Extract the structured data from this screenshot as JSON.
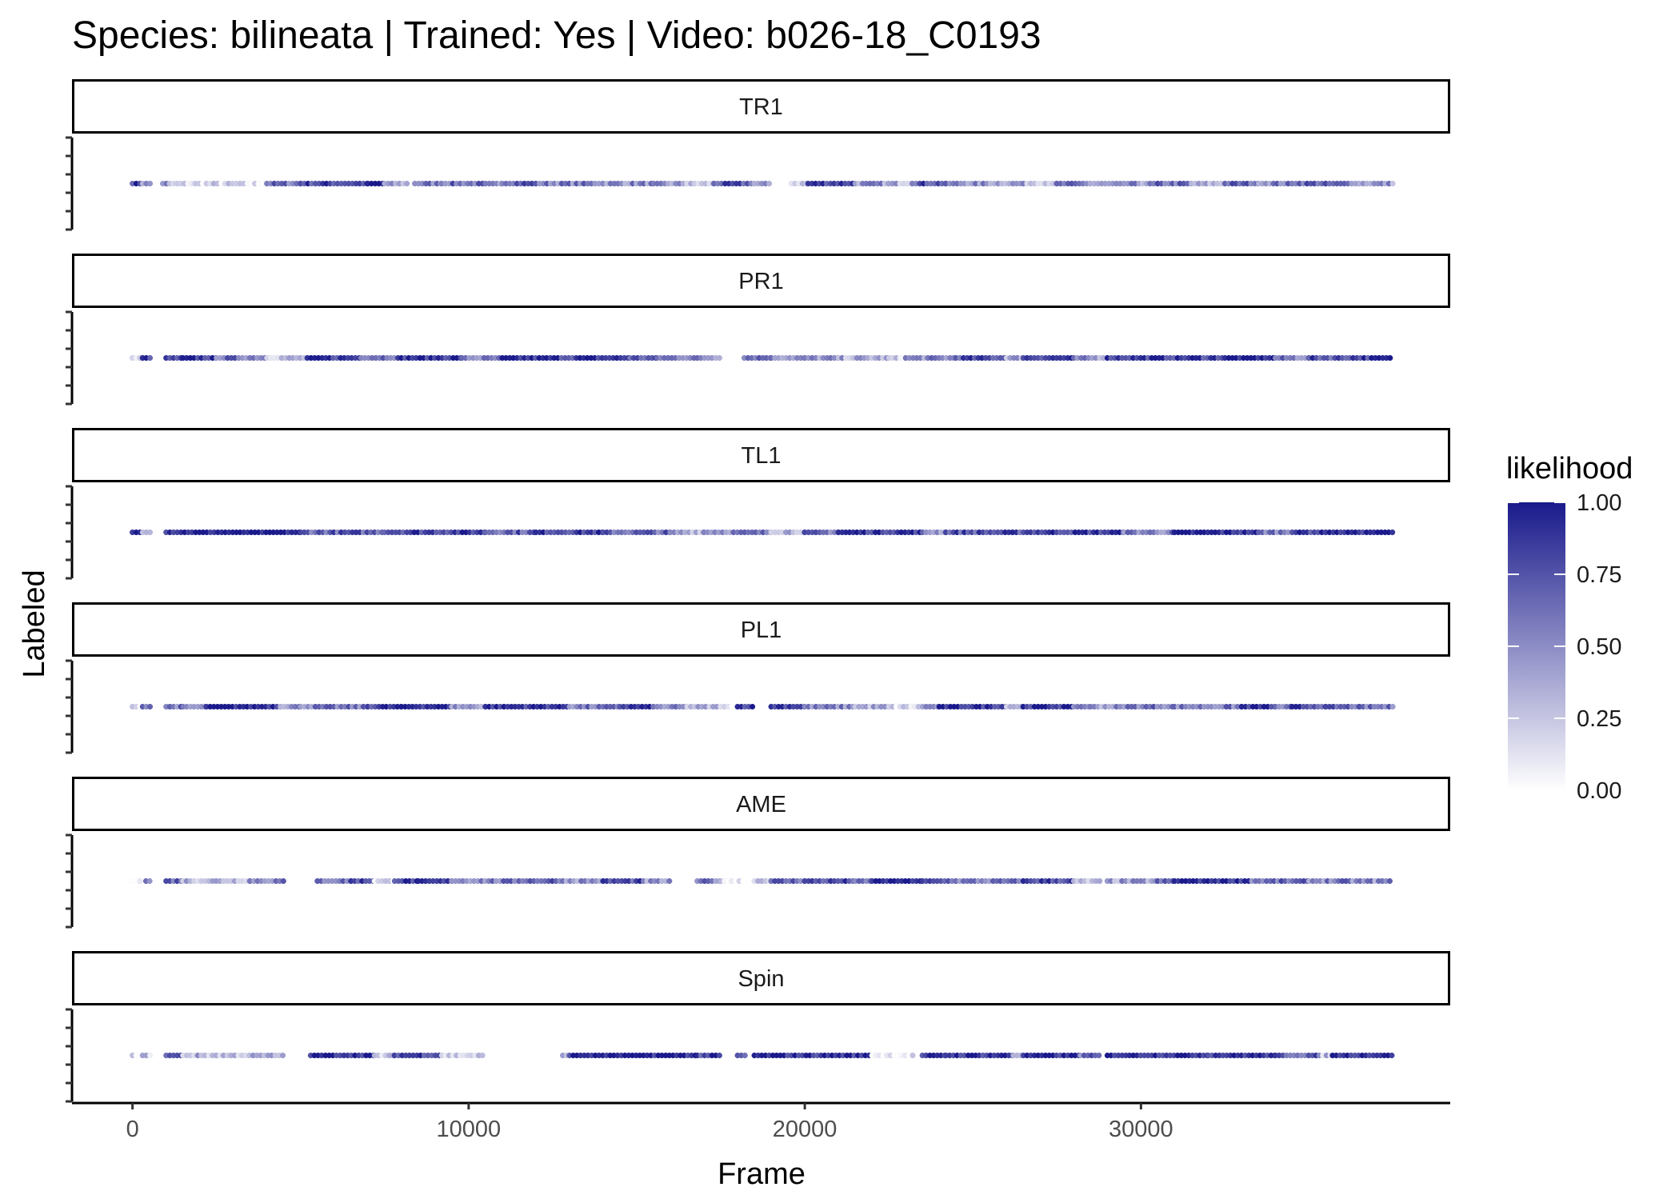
{
  "chart_data": {
    "type": "scatter",
    "title": "Species: bilineata | Trained: Yes | Video: b026-18_C0193",
    "xlabel": "Frame",
    "ylabel": "Labeled",
    "xlim": [
      -1800,
      39200
    ],
    "x_ticks": [
      "0",
      "10000",
      "20000",
      "30000"
    ],
    "x_tick_values": [
      0,
      10000,
      20000,
      30000
    ],
    "frame_range": [
      0,
      37500
    ],
    "grid": false,
    "legend": {
      "title": "likelihood",
      "placement": "right",
      "ticks": [
        "0.00",
        "0.25",
        "0.50",
        "0.75",
        "1.00"
      ],
      "tick_values": [
        0,
        0.25,
        0.5,
        0.75,
        1
      ],
      "color_low": "#ffffff",
      "color_high": "#1a1a8c"
    },
    "colors": {
      "low": "#ffffff",
      "high": "#1a1a8c"
    },
    "panels": [
      {
        "name": "TR1",
        "segments": [
          [
            0,
            300,
            0.85
          ],
          [
            300,
            600,
            0.45
          ],
          [
            900,
            1100,
            0.5
          ],
          [
            1100,
            3200,
            0.15
          ],
          [
            3200,
            4000,
            0.08
          ],
          [
            4000,
            5000,
            0.6
          ],
          [
            5000,
            7000,
            0.8
          ],
          [
            7000,
            7500,
            0.95
          ],
          [
            7500,
            8200,
            0.35
          ],
          [
            8400,
            9200,
            0.55
          ],
          [
            9200,
            10500,
            0.6
          ],
          [
            10500,
            11000,
            0.4
          ],
          [
            11000,
            12000,
            0.75
          ],
          [
            12000,
            14000,
            0.55
          ],
          [
            14000,
            15500,
            0.5
          ],
          [
            15500,
            16500,
            0.4
          ],
          [
            16500,
            17300,
            0.2
          ],
          [
            17300,
            18500,
            0.7
          ],
          [
            18500,
            19000,
            0.35
          ],
          [
            19600,
            20100,
            0.25
          ],
          [
            20100,
            21500,
            0.85
          ],
          [
            21500,
            22500,
            0.45
          ],
          [
            22500,
            23200,
            0.35
          ],
          [
            23200,
            24200,
            0.75
          ],
          [
            24200,
            25200,
            0.5
          ],
          [
            25200,
            26500,
            0.45
          ],
          [
            26500,
            27500,
            0.35
          ],
          [
            27500,
            28500,
            0.55
          ],
          [
            28500,
            29500,
            0.35
          ],
          [
            29500,
            30500,
            0.45
          ],
          [
            30500,
            31500,
            0.6
          ],
          [
            31500,
            32500,
            0.3
          ],
          [
            32500,
            33500,
            0.65
          ],
          [
            33500,
            34500,
            0.55
          ],
          [
            34500,
            35500,
            0.7
          ],
          [
            35500,
            36500,
            0.6
          ],
          [
            36500,
            37500,
            0.45
          ]
        ]
      },
      {
        "name": "PR1",
        "segments": [
          [
            0,
            300,
            0.1
          ],
          [
            300,
            600,
            0.85
          ],
          [
            1000,
            1500,
            0.7
          ],
          [
            1500,
            2500,
            0.85
          ],
          [
            2500,
            4000,
            0.6
          ],
          [
            4000,
            5200,
            0.3
          ],
          [
            5200,
            6800,
            0.85
          ],
          [
            6800,
            8000,
            0.7
          ],
          [
            8000,
            9800,
            0.9
          ],
          [
            9800,
            11000,
            0.5
          ],
          [
            11000,
            14800,
            0.85
          ],
          [
            14800,
            15600,
            0.7
          ],
          [
            15600,
            16800,
            0.6
          ],
          [
            16800,
            17500,
            0.5
          ],
          [
            18200,
            19000,
            0.7
          ],
          [
            19000,
            20000,
            0.5
          ],
          [
            20000,
            21000,
            0.45
          ],
          [
            21000,
            22500,
            0.35
          ],
          [
            22500,
            23000,
            0.15
          ],
          [
            23000,
            24500,
            0.5
          ],
          [
            24500,
            26000,
            0.75
          ],
          [
            26000,
            26500,
            0.4
          ],
          [
            26500,
            28000,
            0.85
          ],
          [
            28000,
            29000,
            0.45
          ],
          [
            29000,
            32500,
            0.85
          ],
          [
            32500,
            34000,
            0.95
          ],
          [
            34000,
            35000,
            0.55
          ],
          [
            35000,
            36200,
            0.75
          ],
          [
            36200,
            37500,
            0.85
          ]
        ]
      },
      {
        "name": "TL1",
        "segments": [
          [
            0,
            300,
            0.95
          ],
          [
            300,
            600,
            0.5
          ],
          [
            1000,
            5000,
            0.95
          ],
          [
            5000,
            7500,
            0.7
          ],
          [
            7500,
            10500,
            0.85
          ],
          [
            10500,
            12000,
            0.7
          ],
          [
            12000,
            14000,
            0.85
          ],
          [
            14000,
            16000,
            0.65
          ],
          [
            16000,
            17000,
            0.4
          ],
          [
            17000,
            19000,
            0.55
          ],
          [
            19000,
            20000,
            0.4
          ],
          [
            20000,
            21000,
            0.6
          ],
          [
            21000,
            23500,
            0.9
          ],
          [
            23500,
            24200,
            0.5
          ],
          [
            24200,
            26500,
            0.75
          ],
          [
            26500,
            29500,
            0.85
          ],
          [
            29500,
            31000,
            0.55
          ],
          [
            31000,
            33500,
            0.9
          ],
          [
            33500,
            34500,
            0.6
          ],
          [
            34500,
            35500,
            0.85
          ],
          [
            35500,
            37500,
            0.95
          ]
        ]
      },
      {
        "name": "PL1",
        "segments": [
          [
            0,
            300,
            0.1
          ],
          [
            300,
            600,
            0.7
          ],
          [
            1000,
            1500,
            0.6
          ],
          [
            1500,
            2200,
            0.4
          ],
          [
            2200,
            4400,
            0.95
          ],
          [
            4400,
            5000,
            0.5
          ],
          [
            5000,
            7000,
            0.55
          ],
          [
            7000,
            8000,
            0.85
          ],
          [
            8000,
            9500,
            0.95
          ],
          [
            9500,
            10500,
            0.45
          ],
          [
            10500,
            13000,
            0.9
          ],
          [
            13000,
            14500,
            0.55
          ],
          [
            14500,
            15500,
            0.85
          ],
          [
            15500,
            16500,
            0.45
          ],
          [
            16500,
            17500,
            0.3
          ],
          [
            17500,
            18000,
            0.05
          ],
          [
            18000,
            18500,
            0.9
          ],
          [
            19000,
            20000,
            0.9
          ],
          [
            20000,
            21500,
            0.5
          ],
          [
            21500,
            22500,
            0.35
          ],
          [
            22500,
            23500,
            0.15
          ],
          [
            23500,
            24000,
            0.5
          ],
          [
            24000,
            26000,
            0.9
          ],
          [
            26000,
            26500,
            0.4
          ],
          [
            26500,
            28000,
            0.9
          ],
          [
            28000,
            28500,
            0.6
          ],
          [
            28500,
            29500,
            0.45
          ],
          [
            29500,
            31000,
            0.6
          ],
          [
            31000,
            33000,
            0.55
          ],
          [
            33000,
            34000,
            0.9
          ],
          [
            34000,
            34500,
            0.5
          ],
          [
            34500,
            35500,
            0.8
          ],
          [
            35500,
            36500,
            0.65
          ],
          [
            36500,
            37500,
            0.55
          ]
        ]
      },
      {
        "name": "AME",
        "segments": [
          [
            0,
            300,
            0.15
          ],
          [
            400,
            600,
            0.55
          ],
          [
            1000,
            1500,
            0.7
          ],
          [
            1500,
            3500,
            0.35
          ],
          [
            3500,
            4500,
            0.55
          ],
          [
            5500,
            6500,
            0.6
          ],
          [
            6500,
            7200,
            0.8
          ],
          [
            7200,
            7800,
            0.15
          ],
          [
            7800,
            8500,
            0.85
          ],
          [
            8500,
            9500,
            0.75
          ],
          [
            9500,
            11500,
            0.55
          ],
          [
            11500,
            12800,
            0.7
          ],
          [
            12800,
            14000,
            0.5
          ],
          [
            14000,
            15200,
            0.75
          ],
          [
            15200,
            16000,
            0.4
          ],
          [
            16800,
            17500,
            0.55
          ],
          [
            17500,
            18200,
            0.1
          ],
          [
            18500,
            19000,
            0.35
          ],
          [
            19000,
            20000,
            0.65
          ],
          [
            20000,
            21500,
            0.75
          ],
          [
            21500,
            22000,
            0.5
          ],
          [
            22000,
            23500,
            0.95
          ],
          [
            23500,
            24500,
            0.7
          ],
          [
            24500,
            26500,
            0.55
          ],
          [
            26500,
            28000,
            0.8
          ],
          [
            28000,
            28800,
            0.2
          ],
          [
            29000,
            30500,
            0.4
          ],
          [
            30500,
            31000,
            0.6
          ],
          [
            31000,
            33300,
            0.95
          ],
          [
            33300,
            35000,
            0.6
          ],
          [
            35000,
            36300,
            0.55
          ],
          [
            36300,
            37500,
            0.5
          ]
        ]
      },
      {
        "name": "Spin",
        "segments": [
          [
            0,
            300,
            0.15
          ],
          [
            300,
            600,
            0.25
          ],
          [
            1000,
            1500,
            0.7
          ],
          [
            1500,
            4500,
            0.3
          ],
          [
            5300,
            7200,
            0.95
          ],
          [
            7200,
            7800,
            0.2
          ],
          [
            7800,
            9200,
            0.85
          ],
          [
            9200,
            10500,
            0.2
          ],
          [
            12800,
            13000,
            0.3
          ],
          [
            13000,
            16800,
            0.95
          ],
          [
            16800,
            17500,
            0.8
          ],
          [
            18000,
            18300,
            0.6
          ],
          [
            18500,
            22000,
            0.9
          ],
          [
            22000,
            23300,
            0.1
          ],
          [
            23500,
            24200,
            0.8
          ],
          [
            24200,
            26200,
            0.9
          ],
          [
            26200,
            26500,
            0.4
          ],
          [
            26500,
            28200,
            0.9
          ],
          [
            28200,
            28800,
            0.6
          ],
          [
            29000,
            32000,
            0.95
          ],
          [
            32000,
            34000,
            0.9
          ],
          [
            34000,
            35300,
            0.7
          ],
          [
            35300,
            35700,
            0.3
          ],
          [
            35700,
            37500,
            0.95
          ]
        ]
      }
    ]
  }
}
